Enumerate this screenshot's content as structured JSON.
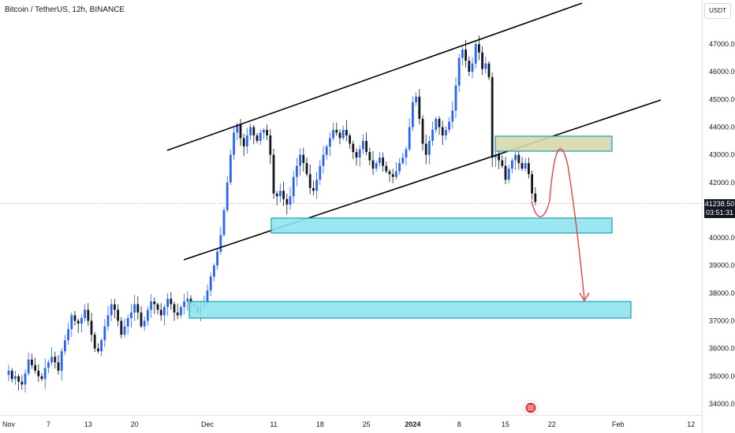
{
  "header": {
    "title": "Bitcoin / TetherUS, 12h, BINANCE",
    "currency_button": "USDT"
  },
  "price_tag": {
    "price": "41238.50",
    "countdown": "03:51:31"
  },
  "colors": {
    "background": "#ffffff",
    "up": "#2962ff",
    "down": "#131722",
    "zone_cyan_fill": "#8fe3ef",
    "zone_cyan_border": "#00bcd4",
    "zone_tan_fill": "#d8d8b0",
    "projection_arrow": "#e53935",
    "channel_line": "#000000",
    "crosshair": "#9598a1"
  },
  "chart_data": {
    "type": "candlestick",
    "title": "Bitcoin / TetherUS, 12h, BINANCE",
    "ylim": [
      33800,
      48300
    ],
    "y_ticks": [
      34000,
      35000,
      36000,
      37000,
      38000,
      39000,
      40000,
      41000,
      42000,
      43000,
      44000,
      45000,
      46000,
      47000
    ],
    "y_tick_labels": [
      "34000.00",
      "35000.00",
      "36000.00",
      "37000.00",
      "38000.00",
      "39000.00",
      "40000.00",
      "41000.00",
      "42000.00",
      "43000.00",
      "44000.00",
      "45000.00",
      "46000.00",
      "47000.00"
    ],
    "x_ticks": [
      {
        "label": "Nov",
        "bar": 0,
        "bold": false
      },
      {
        "label": "7",
        "bar": 12,
        "bold": false
      },
      {
        "label": "13",
        "bar": 24,
        "bold": false
      },
      {
        "label": "20",
        "bar": 38,
        "bold": false
      },
      {
        "label": "Dec",
        "bar": 60,
        "bold": false
      },
      {
        "label": "11",
        "bar": 80,
        "bold": false
      },
      {
        "label": "18",
        "bar": 94,
        "bold": false
      },
      {
        "label": "25",
        "bar": 108,
        "bold": false
      },
      {
        "label": "2024",
        "bar": 122,
        "bold": true
      },
      {
        "label": "8",
        "bar": 136,
        "bold": false
      },
      {
        "label": "15",
        "bar": 150,
        "bold": false
      },
      {
        "label": "22",
        "bar": 164,
        "bold": false
      },
      {
        "label": "Feb",
        "bar": 184,
        "bold": false
      },
      {
        "label": "12",
        "bar": 206,
        "bold": false
      }
    ],
    "last_price": 41238.5,
    "closes": [
      35200,
      34900,
      35000,
      34800,
      34700,
      35100,
      35600,
      35400,
      35200,
      35000,
      34900,
      35300,
      35500,
      35700,
      35500,
      35200,
      35900,
      36300,
      36700,
      37200,
      37000,
      36900,
      37100,
      37400,
      37000,
      36500,
      36000,
      35900,
      36300,
      36800,
      37200,
      37600,
      37400,
      37000,
      36500,
      36800,
      37100,
      37300,
      37600,
      37300,
      36800,
      37000,
      37400,
      37700,
      37600,
      37400,
      37200,
      37500,
      37800,
      37600,
      37300,
      37200,
      37500,
      37700,
      37800,
      37600,
      37500,
      37300,
      37500,
      37600,
      38100,
      38600,
      39000,
      39500,
      40100,
      41000,
      42000,
      43000,
      43800,
      44100,
      43600,
      43300,
      43700,
      44000,
      43700,
      43500,
      43800,
      43900,
      43700,
      43000,
      41600,
      41500,
      41700,
      41400,
      41200,
      41500,
      42200,
      42600,
      43000,
      42700,
      42300,
      41800,
      41700,
      42100,
      42600,
      43000,
      43300,
      43600,
      43900,
      43800,
      43600,
      43900,
      43700,
      43400,
      43100,
      42900,
      43200,
      43500,
      43100,
      42800,
      42500,
      42700,
      42900,
      42600,
      42400,
      42300,
      42200,
      42400,
      42700,
      42900,
      43200,
      44000,
      44900,
      45100,
      44300,
      43400,
      43000,
      43500,
      43900,
      44300,
      44000,
      43700,
      43900,
      44200,
      44600,
      45500,
      46500,
      46800,
      46400,
      46000,
      46300,
      47000,
      46700,
      46100,
      46300,
      45800,
      42900,
      43000,
      42800,
      42600,
      42100,
      42500,
      42800,
      43000,
      42700,
      42500,
      42700,
      42300,
      41600,
      41300
    ]
  }
}
